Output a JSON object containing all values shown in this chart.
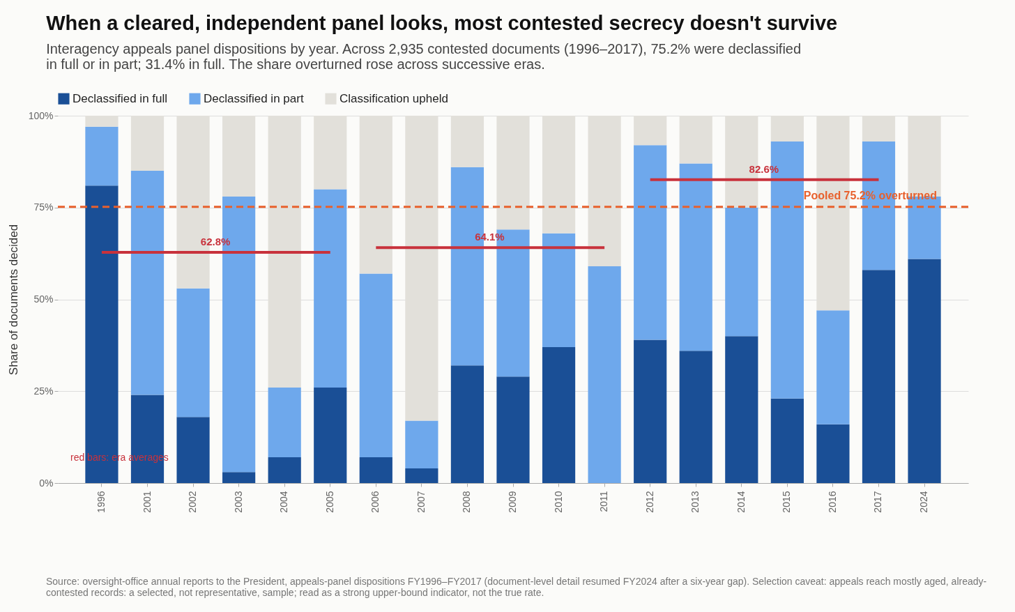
{
  "chart_data": {
    "type": "bar",
    "title": "When a cleared, independent panel looks, most contested secrecy doesn't survive",
    "subtitle": "Interagency appeals panel dispositions by year. Across 2,935 contested documents (1996–2017), 75.2% were declassified in full or in part; 31.4% in full. The share overturned rose across successive eras.",
    "ylabel": "Share of documents decided",
    "categories": [
      "1996",
      "2001",
      "2002",
      "2003",
      "2004",
      "2005",
      "2006",
      "2007",
      "2008",
      "2009",
      "2010",
      "2011",
      "2012",
      "2013",
      "2014",
      "2015",
      "2016",
      "2017",
      "2024"
    ],
    "stacked": true,
    "series": [
      {
        "name": "Declassified in full",
        "color": "#1a4f96",
        "values": [
          81,
          24,
          18,
          3,
          7,
          26,
          7,
          4,
          32,
          29,
          37,
          0,
          39,
          36,
          40,
          23,
          16,
          58,
          61
        ]
      },
      {
        "name": "Declassified in part",
        "color": "#6ea8ec",
        "values": [
          16,
          61,
          35,
          75,
          19,
          54,
          50,
          13,
          54,
          40,
          31,
          59,
          53,
          51,
          35,
          70,
          31,
          35,
          17
        ]
      },
      {
        "name": "Classification upheld",
        "color": "#e2e0da",
        "values": [
          3,
          15,
          47,
          22,
          74,
          20,
          43,
          83,
          14,
          31,
          32,
          41,
          8,
          13,
          25,
          7,
          53,
          7,
          22
        ]
      },
      {
        "type": "line",
        "color": "#c8323c",
        "values": [
          62.8,
          62.8,
          62.8,
          62.8,
          62.8,
          62.8,
          null,
          null,
          null,
          null,
          null,
          null,
          null,
          null,
          null,
          null,
          null,
          null,
          null
        ]
      },
      {
        "type": "line",
        "color": "#c8323c",
        "values": [
          null,
          null,
          null,
          null,
          null,
          null,
          64.1,
          64.1,
          64.1,
          64.1,
          64.1,
          64.1,
          null,
          null,
          null,
          null,
          null,
          null,
          null
        ]
      },
      {
        "type": "line",
        "color": "#c8323c",
        "values": [
          null,
          null,
          null,
          null,
          null,
          null,
          null,
          null,
          null,
          null,
          null,
          null,
          82.6,
          82.6,
          82.6,
          82.6,
          82.6,
          82.6,
          null
        ]
      }
    ],
    "ylim": [
      0,
      100
    ],
    "yticks": [
      {
        "value": 0,
        "label": "0%"
      },
      {
        "value": 25,
        "label": "25%"
      },
      {
        "value": 50,
        "label": "50%"
      },
      {
        "value": 75,
        "label": "75%"
      },
      {
        "value": 100,
        "label": "100%"
      }
    ],
    "grid": "y",
    "legend": "top",
    "ref_lines": [
      {
        "axis": "y",
        "value": 75.2,
        "label": "Pooled 75.2% overturned",
        "color": "#e8602c",
        "line_style": "dashed"
      }
    ],
    "annotations": [
      {
        "text": "62.8%",
        "x": "2002",
        "y": 62.8
      },
      {
        "text": "64.1%",
        "x": "2008",
        "y": 64.1
      },
      {
        "text": "82.6%",
        "x": "2014",
        "y": 82.6
      },
      "red bars: era averages",
      "Source: oversight-office annual reports to the President, appeals-panel dispositions FY1996–FY2017 (document-level detail resumed FY2024 after a six-year gap). Selection caveat: appeals reach mostly aged, already-contested records: a selected, not representative, sample; read as a strong upper-bound indicator, not the true rate."
    ]
  }
}
